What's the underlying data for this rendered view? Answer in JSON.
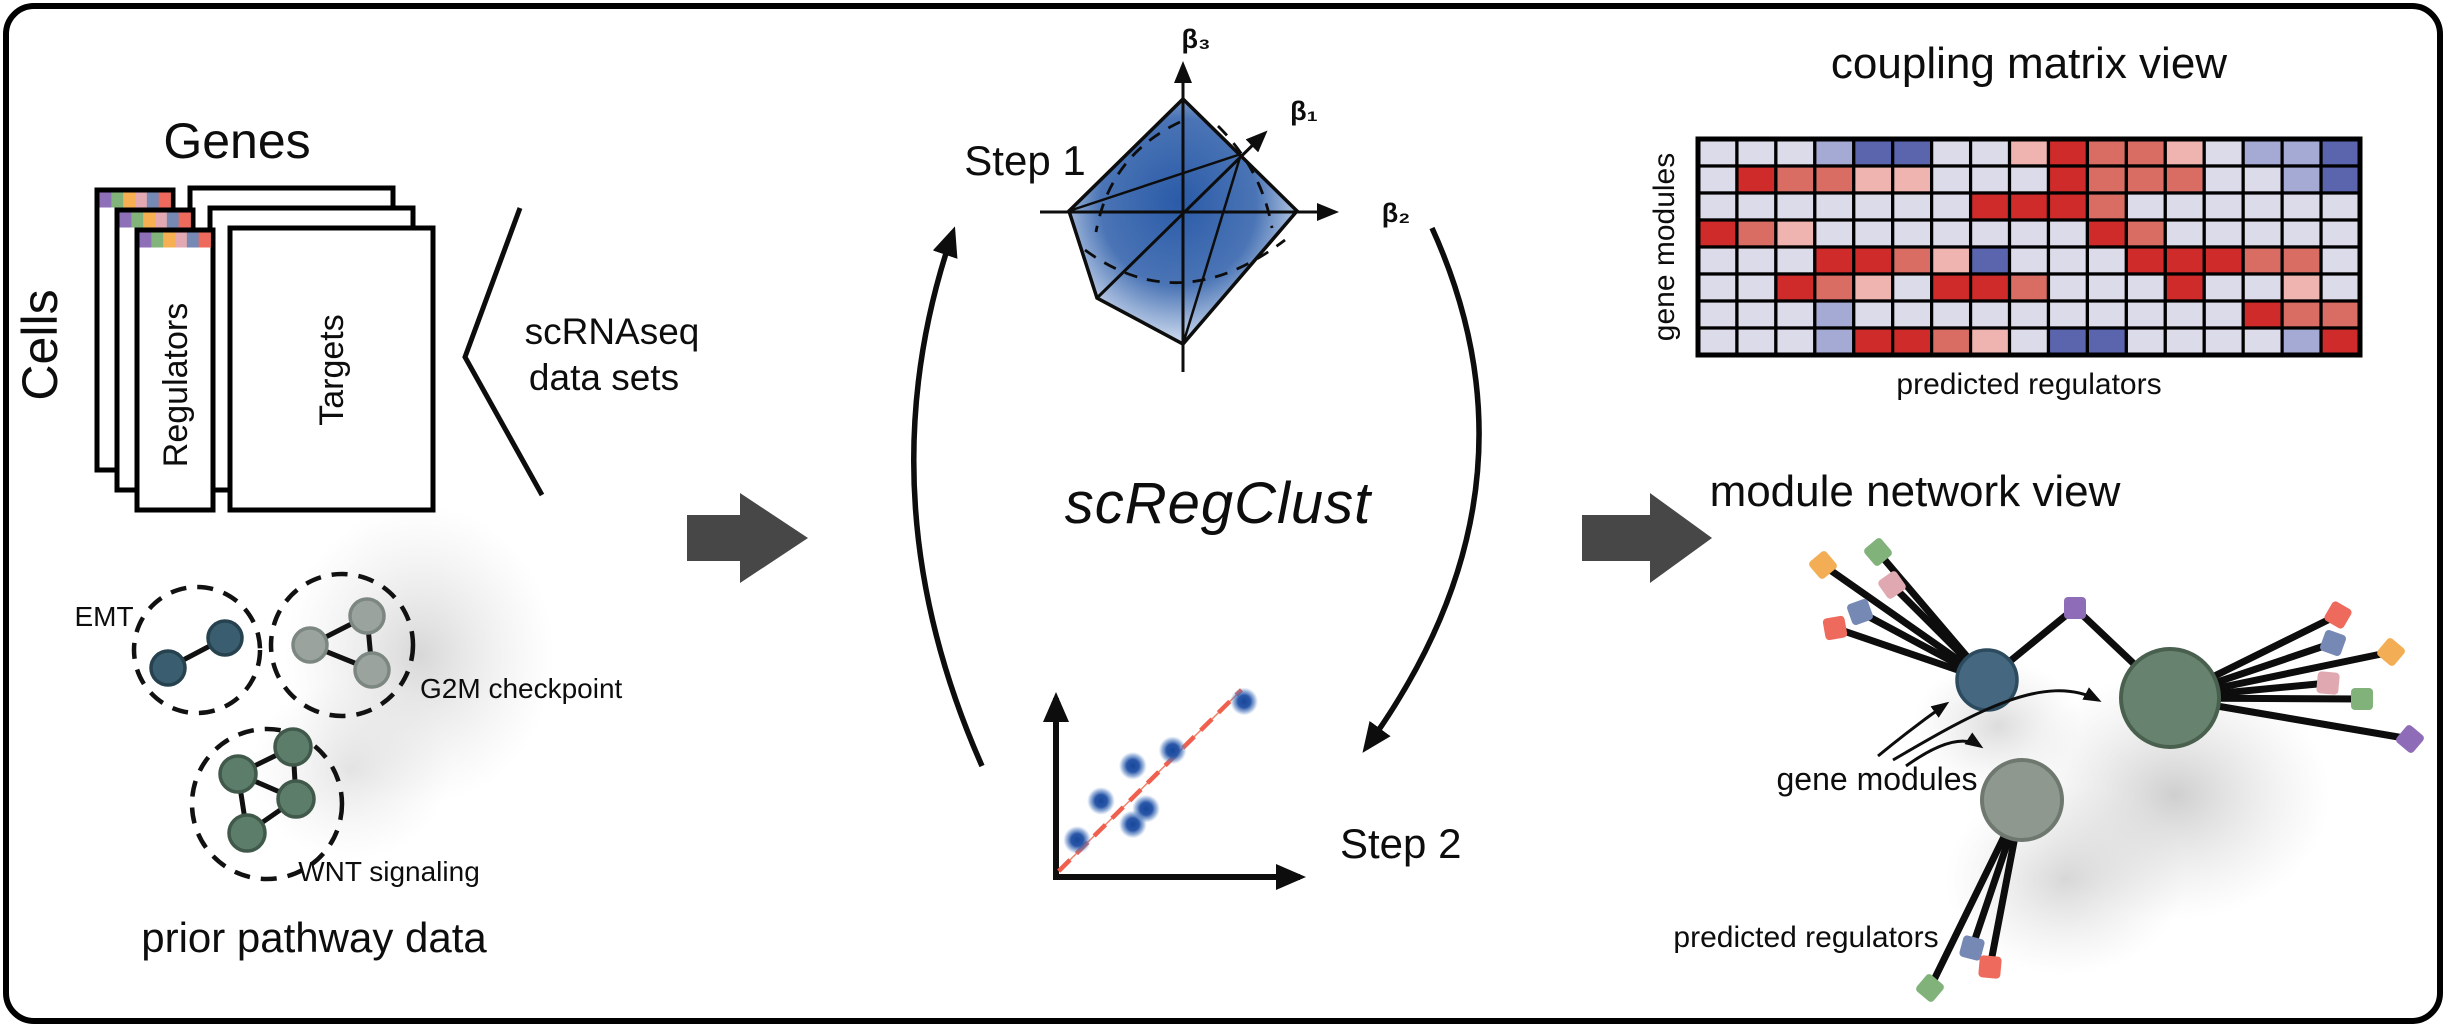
{
  "palette": {
    "strip": [
      "#8d70b8",
      "#82b37a",
      "#f6b052",
      "#e2a9b3",
      "#7589b4",
      "#ee6a5c"
    ],
    "squares": {
      "red": "#ee6a5c",
      "blue": "#7589b4",
      "orange": "#f3ae55",
      "pink": "#e0a9b1",
      "green": "#80b27a",
      "purple": "#8f6cb8"
    },
    "nodes": {
      "emt_fill": "#3a5d70",
      "emt_stroke": "#27424f",
      "g2m_fill": "#9aa39e",
      "g2m_stroke": "#7d8781",
      "wnt_fill": "#5d7d6b",
      "wnt_stroke": "#40594a",
      "module_blue_fill": "#456780",
      "module_blue_stroke": "#2c4b5f",
      "module_green_fill": "#67826e",
      "module_green_stroke": "#49604f",
      "module_gray_fill": "#8e988f",
      "module_gray_stroke": "#6e786f"
    },
    "arrow_gray": "#474748",
    "trend_red": "#ef604f",
    "polytope_core_blue": "#2b5ba8"
  },
  "left": {
    "genes_label": "Genes",
    "cells_label": "Cells",
    "regulators_label": "Regulators",
    "targets_label": "Targets",
    "bracket_label_line1": "scRNAseq",
    "bracket_label_line2": "data sets",
    "pathways": [
      {
        "label": "EMT",
        "nodes": 2
      },
      {
        "label": "G2M checkpoint",
        "nodes": 3
      },
      {
        "label": "WNT signaling",
        "nodes": 4
      }
    ],
    "caption": "prior pathway data"
  },
  "middle": {
    "step1_label": "Step 1",
    "step2_label": "Step 2",
    "tool_name": "scRegClust",
    "beta1_label": "β₁",
    "beta2_label": "β₂",
    "beta3_label": "β₃"
  },
  "right": {
    "matrix_title": "coupling matrix view",
    "matrix_ylabel": "gene modules",
    "matrix_xlabel": "predicted regulators",
    "network_title": "module network view",
    "network_modules_label": "gene modules",
    "network_regulators_label": "predicted regulators"
  },
  "network": {
    "left_squares": [
      "orange",
      "green",
      "pink",
      "blue",
      "red"
    ],
    "top_squares": [
      "purple"
    ],
    "right_squares": [
      "red",
      "blue",
      "orange",
      "pink",
      "green",
      "purple"
    ],
    "bottom_squares": [
      "blue",
      "red",
      "green"
    ]
  },
  "chart_data": [
    {
      "type": "heatmap",
      "title": "coupling matrix view",
      "xlabel": "predicted regulators",
      "ylabel": "gene modules",
      "rows": 8,
      "cols": 17,
      "value_colors": {
        "0": "#dcdbe9",
        "1": "#a5aad4",
        "2": "#5a65ae",
        "3": "#f0b4b0",
        "4": "#d96c63",
        "5": "#cf2b2a"
      },
      "cells": [
        [
          0,
          0,
          0,
          1,
          2,
          2,
          0,
          0,
          3,
          5,
          4,
          4,
          3,
          0,
          1,
          1,
          2
        ],
        [
          0,
          5,
          4,
          4,
          3,
          3,
          0,
          0,
          0,
          5,
          4,
          4,
          4,
          0,
          0,
          1,
          2
        ],
        [
          0,
          0,
          0,
          0,
          0,
          0,
          0,
          5,
          5,
          5,
          4,
          0,
          0,
          0,
          0,
          0,
          0
        ],
        [
          5,
          4,
          3,
          0,
          0,
          0,
          0,
          0,
          0,
          0,
          5,
          4,
          0,
          0,
          0,
          0,
          0
        ],
        [
          0,
          0,
          0,
          5,
          5,
          4,
          3,
          2,
          0,
          0,
          0,
          5,
          5,
          5,
          4,
          4,
          0
        ],
        [
          0,
          0,
          5,
          4,
          3,
          0,
          5,
          5,
          4,
          0,
          0,
          0,
          5,
          0,
          0,
          3,
          0
        ],
        [
          0,
          0,
          0,
          1,
          0,
          0,
          0,
          0,
          0,
          0,
          0,
          0,
          0,
          0,
          5,
          4,
          4
        ],
        [
          0,
          0,
          0,
          1,
          5,
          5,
          4,
          3,
          0,
          2,
          2,
          0,
          0,
          0,
          0,
          1,
          5
        ]
      ]
    },
    {
      "type": "scatter",
      "title": "",
      "xlabel": "",
      "ylabel": "",
      "points": [
        {
          "x": 0.08,
          "y": 0.19
        },
        {
          "x": 0.17,
          "y": 0.39
        },
        {
          "x": 0.29,
          "y": 0.57
        },
        {
          "x": 0.29,
          "y": 0.27
        },
        {
          "x": 0.34,
          "y": 0.35
        },
        {
          "x": 0.44,
          "y": 0.65
        },
        {
          "x": 0.71,
          "y": 0.9
        }
      ],
      "trend_line": {
        "x1": 0.01,
        "y1": 0.03,
        "x2": 0.7,
        "y2": 0.96
      }
    }
  ]
}
